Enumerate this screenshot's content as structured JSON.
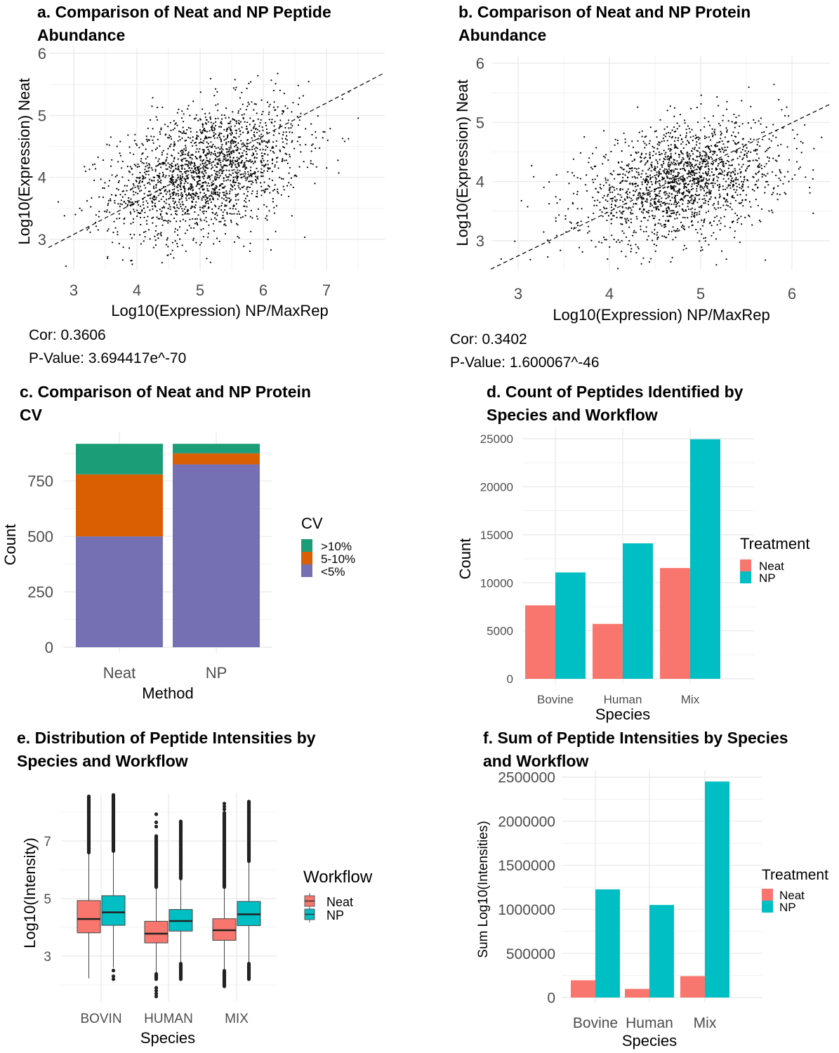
{
  "chart_data": [
    {
      "panel": "a",
      "type": "scatter",
      "title_lines": [
        "a. Comparison of Neat and NP Peptide",
        "Abundance"
      ],
      "xlabel": "Log10(Expression) NP/MaxRep",
      "ylabel": "Log10(Expression) Neat",
      "xticks": [
        "3",
        "4",
        "5",
        "6",
        "7"
      ],
      "yticks": [
        "3",
        "4",
        "5",
        "6"
      ],
      "xlim": [
        2.6,
        7.9
      ],
      "ylim": [
        2.5,
        6.1
      ],
      "grid": true,
      "approx_points": 2000,
      "point_distribution": {
        "x_mean": 5.1,
        "x_sd": 0.75,
        "y_mean": 4.1,
        "y_sd": 0.55,
        "correlation": 0.3606
      },
      "trend_line": {
        "style": "dashed",
        "slope": 0.53,
        "intercept": 1.49
      },
      "annotations": [
        "Cor: 0.3606",
        "P-Value: 3.694417e^-70"
      ]
    },
    {
      "panel": "b",
      "type": "scatter",
      "title_lines": [
        "b. Comparison of Neat and NP Protein",
        "Abundance"
      ],
      "xlabel": "Log10(Expression) NP/MaxRep",
      "ylabel": "Log10(Expression) Neat",
      "xticks": [
        "3",
        "4",
        "5",
        "6"
      ],
      "yticks": [
        "3",
        "4",
        "5",
        "6"
      ],
      "xlim": [
        2.7,
        6.42
      ],
      "ylim": [
        2.5,
        6.1
      ],
      "grid": true,
      "approx_points": 1800,
      "point_distribution": {
        "x_mean": 4.8,
        "x_sd": 0.55,
        "y_mean": 4.0,
        "y_sd": 0.5,
        "correlation": 0.3402
      },
      "trend_line": {
        "style": "dashed",
        "slope": 0.75,
        "intercept": 0.495
      },
      "annotations": [
        "Cor: 0.3402",
        "P-Value: 1.600067^-46"
      ]
    },
    {
      "panel": "c",
      "type": "bar",
      "stacked": true,
      "title_lines": [
        "c. Comparison of Neat and NP Protein",
        "CV"
      ],
      "xlabel": "Method",
      "ylabel": "Count",
      "categories": [
        "Neat",
        "NP"
      ],
      "yticks": [
        "0",
        "250",
        "500",
        "750"
      ],
      "ylim": [
        0,
        930
      ],
      "legend_title": "CV",
      "legend_position": "right",
      "series": [
        {
          "name": "<5%",
          "color": "#7570b3",
          "values": [
            500,
            825
          ]
        },
        {
          "name": "5-10%",
          "color": "#d95f02",
          "values": [
            280,
            50
          ]
        },
        {
          "name": ">10%",
          "color": "#1b9e77",
          "values": [
            138,
            43
          ]
        }
      ],
      "legend_order": [
        2,
        1,
        0
      ]
    },
    {
      "panel": "d",
      "type": "bar",
      "title_lines": [
        "d. Count of Peptides Identified by",
        "Species and Workflow"
      ],
      "xlabel": "Species",
      "ylabel": "Count",
      "categories": [
        "Bovine",
        "Human",
        "Mix"
      ],
      "yticks": [
        "0",
        "5000",
        "10000",
        "15000",
        "20000",
        "25000"
      ],
      "ylim": [
        0,
        25500
      ],
      "legend_title": "Treatment",
      "legend_position": "right",
      "series": [
        {
          "name": "Neat",
          "color": "#f8766d",
          "values": [
            7650,
            5720,
            11540
          ]
        },
        {
          "name": "NP",
          "color": "#00bfc4",
          "values": [
            11080,
            14110,
            24950
          ]
        }
      ]
    },
    {
      "panel": "e",
      "type": "box",
      "title_lines": [
        "e. Distribution of Peptide Intensities by",
        "Species and Workflow"
      ],
      "xlabel": "Species",
      "ylabel": "Log10(Intensity)",
      "categories": [
        "BOVIN",
        "HUMAN",
        "MIX"
      ],
      "yticks": [
        "3",
        "5",
        "7"
      ],
      "ylim": [
        1.6,
        8.7
      ],
      "legend_title": "Workflow",
      "legend_position": "right",
      "series": [
        {
          "name": "Neat",
          "color": "#f8766d",
          "boxes": [
            {
              "low": 2.23,
              "q1": 3.81,
              "median": 4.29,
              "q3": 4.93,
              "high": 6.6,
              "outlier_ranges": [
                [
                  6.6,
                  8.55
                ]
              ],
              "outlier_points": []
            },
            {
              "low": 2.4,
              "q1": 3.46,
              "median": 3.78,
              "q3": 4.21,
              "high": 5.4,
              "outlier_ranges": [
                [
                  5.4,
                  7.2
                ],
                [
                  2.2,
                  2.4
                ]
              ],
              "outlier_points": [
                7.5,
                7.65,
                7.93,
                1.6,
                1.7,
                1.8,
                1.9
              ]
            },
            {
              "low": 2.5,
              "q1": 3.55,
              "median": 3.9,
              "q3": 4.3,
              "high": 5.4,
              "outlier_ranges": [
                [
                  5.4,
                  8.0
                ],
                [
                  1.95,
                  2.5
                ]
              ],
              "outlier_points": [
                8.1,
                8.2,
                8.3
              ]
            }
          ]
        },
        {
          "name": "NP",
          "color": "#00bfc4",
          "boxes": [
            {
              "low": 2.6,
              "q1": 4.07,
              "median": 4.52,
              "q3": 5.1,
              "high": 6.6,
              "outlier_ranges": [
                [
                  6.65,
                  8.6
                ]
              ],
              "outlier_points": [
                2.2,
                2.3,
                2.5
              ]
            },
            {
              "low": 2.75,
              "q1": 3.87,
              "median": 4.22,
              "q3": 4.62,
              "high": 5.7,
              "outlier_ranges": [
                [
                  5.7,
                  7.7
                ],
                [
                  2.2,
                  2.75
                ]
              ],
              "outlier_points": []
            },
            {
              "low": 2.75,
              "q1": 4.06,
              "median": 4.45,
              "q3": 4.9,
              "high": 6.3,
              "outlier_ranges": [
                [
                  6.3,
                  8.4
                ],
                [
                  2.2,
                  2.75
                ]
              ],
              "outlier_points": []
            }
          ]
        }
      ]
    },
    {
      "panel": "f",
      "type": "bar",
      "title_lines": [
        "f. Sum of Peptide Intensities by Species",
        "and Workflow"
      ],
      "xlabel": "Species",
      "ylabel": "Sum Log10(Intensities)",
      "categories": [
        "Bovine",
        "Human",
        "Mix"
      ],
      "yticks": [
        "0",
        "500000",
        "1000000",
        "1500000",
        "2000000",
        "2500000"
      ],
      "ylim": [
        0,
        2550000
      ],
      "legend_title": "Treatment",
      "legend_position": "right",
      "series": [
        {
          "name": "Neat",
          "color": "#f8766d",
          "values": [
            196000,
            98000,
            243000
          ]
        },
        {
          "name": "NP",
          "color": "#00bfc4",
          "values": [
            1227000,
            1050000,
            2450000
          ]
        }
      ]
    }
  ]
}
